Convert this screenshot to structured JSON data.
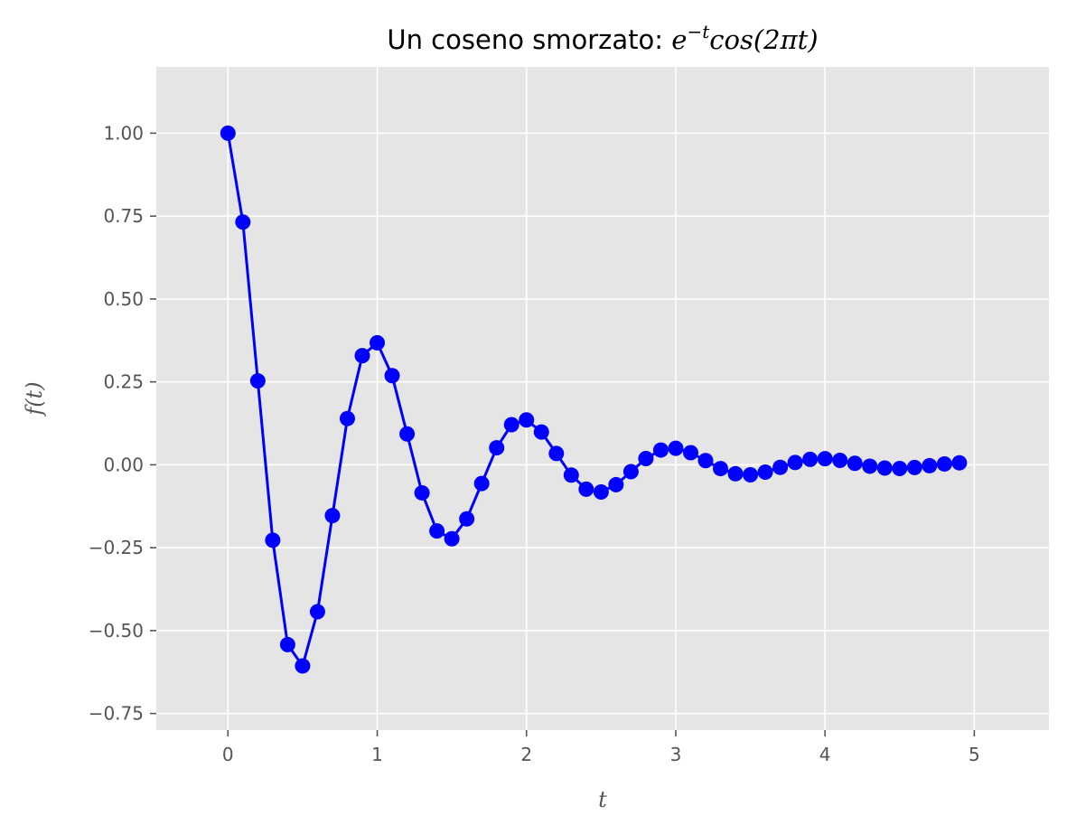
{
  "chart_data": {
    "type": "line",
    "title_text": "Un coseno smorzato: ",
    "title_math_base": "e",
    "title_math_exp": "−t",
    "title_math_tail": "cos(2πt)",
    "xlabel": "t",
    "ylabel": "f(t)",
    "xlim": [
      -0.48,
      5.5
    ],
    "ylim": [
      -0.8,
      1.2
    ],
    "xticks": [
      0,
      1,
      2,
      3,
      4,
      5
    ],
    "xtick_labels": [
      "0",
      "1",
      "2",
      "3",
      "4",
      "5"
    ],
    "yticks": [
      -0.75,
      -0.5,
      -0.25,
      0.0,
      0.25,
      0.5,
      0.75,
      1.0
    ],
    "ytick_labels": [
      "−0.75",
      "−0.50",
      "−0.25",
      "0.00",
      "0.25",
      "0.50",
      "0.75",
      "1.00"
    ],
    "grid": true,
    "colors": {
      "series": "#0000ff",
      "plot_bg": "#e5e5e5",
      "grid": "#ffffff",
      "tick_text": "#555555"
    },
    "x": [
      0.0,
      0.1,
      0.2,
      0.3,
      0.4,
      0.5,
      0.6,
      0.7,
      0.8,
      0.9,
      1.0,
      1.1,
      1.2,
      1.3,
      1.4,
      1.5,
      1.6,
      1.7,
      1.8,
      1.9,
      2.0,
      2.1,
      2.2,
      2.3,
      2.4,
      2.5,
      2.6,
      2.7,
      2.8,
      2.9,
      3.0,
      3.1,
      3.2,
      3.3,
      3.4,
      3.5,
      3.6,
      3.7,
      3.8,
      3.9,
      4.0,
      4.1,
      4.2,
      4.3,
      4.4,
      4.5,
      4.6,
      4.7,
      4.8,
      4.9
    ],
    "series": [
      {
        "values": [
          1.0,
          0.732,
          0.253,
          -0.2274,
          -0.5423,
          -0.6065,
          -0.4431,
          -0.1533,
          0.1395,
          0.3291,
          0.3679,
          0.2688,
          0.093,
          -0.0846,
          -0.1995,
          -0.2231,
          -0.163,
          -0.0564,
          0.0513,
          0.1211,
          0.1353,
          0.0989,
          0.0342,
          -0.0311,
          -0.0734,
          -0.0821,
          -0.06,
          -0.0207,
          0.0189,
          0.0445,
          0.0498,
          0.0364,
          0.0126,
          -0.0114,
          -0.027,
          -0.0302,
          -0.0221,
          -0.0076,
          0.007,
          0.0164,
          0.0183,
          0.0134,
          0.0046,
          -0.0042,
          -0.0099,
          -0.0111,
          -0.0081,
          -0.0028,
          0.0026,
          0.006
        ]
      }
    ]
  }
}
